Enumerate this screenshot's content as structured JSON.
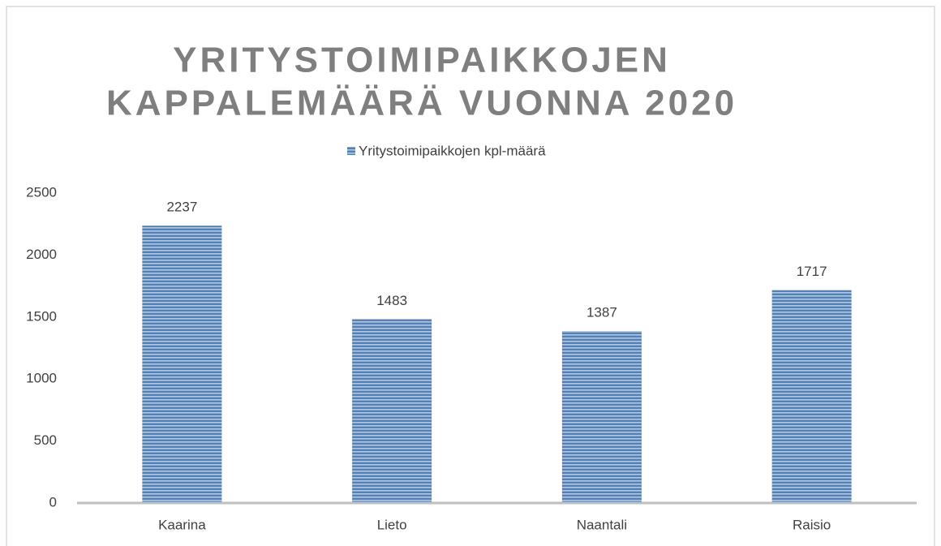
{
  "chart_data": {
    "type": "bar",
    "title": [
      "YRITYSTOIMIPAIKKOJEN",
      "KAPPALEMÄÄRÄ VUONNA 2020"
    ],
    "categories": [
      "Kaarina",
      "Lieto",
      "Naantali",
      "Raisio"
    ],
    "series": [
      {
        "name": "Yritystoimipaikkojen kpl-määrä",
        "color": "#4f81bd",
        "values": [
          2237,
          1483,
          1387,
          1717
        ]
      }
    ],
    "ylim": [
      0,
      2500
    ],
    "yticks": [
      0,
      500,
      1000,
      1500,
      2000,
      2500
    ],
    "grid": false,
    "legend": "top"
  }
}
